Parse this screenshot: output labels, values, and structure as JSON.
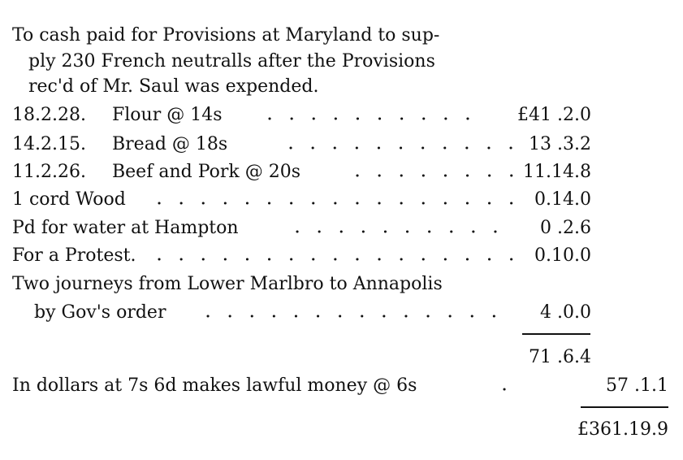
{
  "intro": [
    "To cash paid for Provisions at Maryland to sup-",
    "ply 230 French neutralls after the Provisions",
    "rec'd of Mr. Saul was expended."
  ],
  "entries": [
    {
      "quantity": "18.2.28.",
      "item": "Flour @ 14s",
      "amount": "£41 .2.0"
    },
    {
      "quantity": "14.2.15.",
      "item": "Bread @ 18s",
      "amount": "13 .3.2"
    },
    {
      "quantity": "11.2.26.",
      "item": "Beef and Pork @ 20s",
      "amount": "11.14.8"
    },
    {
      "item": "1 cord Wood",
      "amount": "0.14.0"
    },
    {
      "item": "Pd for water at Hampton",
      "amount": "0 .2.6"
    },
    {
      "item": "For a Protest.",
      "amount": "0.10.0"
    },
    {
      "item": "Two journeys from Lower Marlbro to Annapolis",
      "item_continued": "by Gov's order",
      "amount": "4 .0.0"
    }
  ],
  "subtotal": "71 .6.4",
  "conversion": {
    "text": "In dollars at 7s 6d makes lawful money @ 6s",
    "amount": "57 .1.1"
  },
  "total": "£361.19.9"
}
